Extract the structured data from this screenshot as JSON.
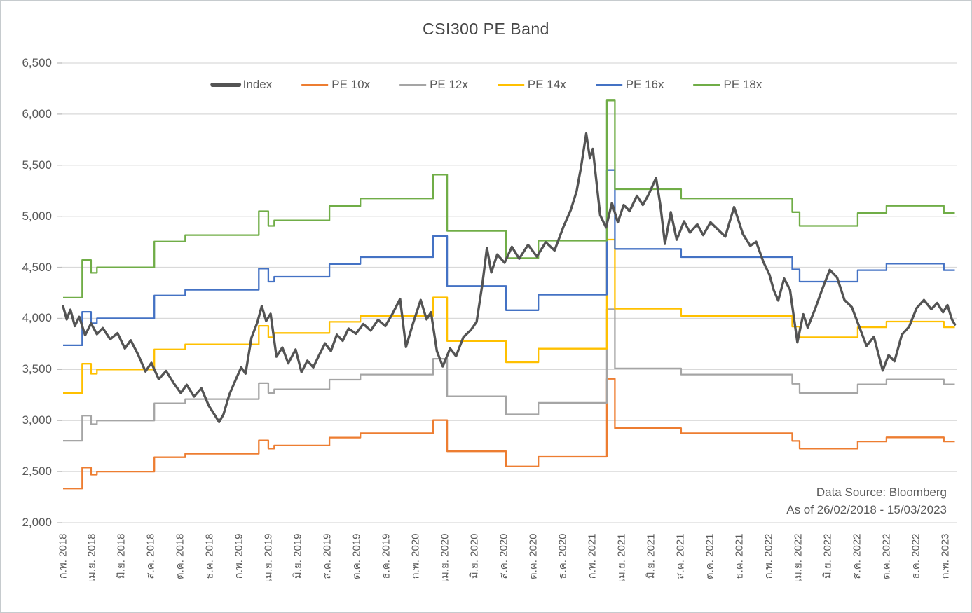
{
  "chart_data": {
    "type": "line",
    "title": "CSI300 PE Band",
    "legend": [
      {
        "name": "Index",
        "color": "#545454",
        "thick": true
      },
      {
        "name": "PE 10x",
        "color": "#ED7D31",
        "thick": false
      },
      {
        "name": "PE 12x",
        "color": "#A5A5A5",
        "thick": false
      },
      {
        "name": "PE 14x",
        "color": "#FFC000",
        "thick": false
      },
      {
        "name": "PE 16x",
        "color": "#4472C4",
        "thick": false
      },
      {
        "name": "PE 18x",
        "color": "#70AD47",
        "thick": false
      }
    ],
    "grid": "horizontal",
    "legend_position": "top-center",
    "y_axis": {
      "min": 2000,
      "max": 6500,
      "tick_step": 500,
      "tick_labels": [
        "6,500",
        "6,000",
        "5,500",
        "5,000",
        "4,500",
        "4,000",
        "3,500",
        "3,000",
        "2,500",
        "2,000"
      ],
      "tick_values": [
        6500,
        6000,
        5500,
        5000,
        4500,
        4000,
        3500,
        3000,
        2500,
        2000
      ]
    },
    "x_axis": {
      "unit": "months since 26/02/2018",
      "min": 0,
      "max": 60.6,
      "tick_interval_months": 2,
      "tick_labels": [
        "ก.พ. 2018",
        "เม.ย. 2018",
        "มิ.ย. 2018",
        "ส.ค. 2018",
        "ต.ค. 2018",
        "ธ.ค. 2018",
        "ก.พ. 2019",
        "เม.ย. 2019",
        "มิ.ย. 2019",
        "ส.ค. 2019",
        "ต.ค. 2019",
        "ธ.ค. 2019",
        "ก.พ. 2020",
        "เม.ย. 2020",
        "มิ.ย. 2020",
        "ส.ค. 2020",
        "ต.ค. 2020",
        "ธ.ค. 2020",
        "ก.พ. 2021",
        "เม.ย. 2021",
        "มิ.ย. 2021",
        "ส.ค. 2021",
        "ต.ค. 2021",
        "ธ.ค. 2021",
        "ก.พ. 2022",
        "เม.ย. 2022",
        "มิ.ย. 2022",
        "ส.ค. 2022",
        "ต.ค. 2022",
        "ธ.ค. 2022",
        "ก.พ. 2023"
      ]
    },
    "source_note": {
      "line1": "Data Source: Bloomberg",
      "line2": "As of 26/02/2018 - 15/03/2023"
    },
    "pe_bands": {
      "note": "band value = earnings_per_point E times PE multiple; each step [t,E] applies from month t onward",
      "multiples": [
        10,
        12,
        14,
        16,
        18
      ],
      "series_names": [
        "PE 10x",
        "PE 12x",
        "PE 14x",
        "PE 16x",
        "PE 18x"
      ],
      "colors": [
        "#ED7D31",
        "#A5A5A5",
        "#FFC000",
        "#4472C4",
        "#70AD47"
      ],
      "earnings_steps": [
        [
          0,
          233.5
        ],
        [
          1.3,
          254
        ],
        [
          1.9,
          247
        ],
        [
          2.3,
          250
        ],
        [
          6.2,
          264
        ],
        [
          8.3,
          267.5
        ],
        [
          13.3,
          280.5
        ],
        [
          13.95,
          272.5
        ],
        [
          14.35,
          275.5
        ],
        [
          18.1,
          283.3
        ],
        [
          20.2,
          287.5
        ],
        [
          25.15,
          300.4
        ],
        [
          26.1,
          269.8
        ],
        [
          30.1,
          255
        ],
        [
          32.3,
          264.5
        ],
        [
          36.95,
          340.8
        ],
        [
          37.5,
          292.5
        ],
        [
          42.0,
          287.5
        ],
        [
          49.55,
          280
        ],
        [
          50.05,
          272.5
        ],
        [
          54.0,
          279.5
        ],
        [
          55.95,
          283.5
        ],
        [
          59.85,
          279.5
        ]
      ]
    },
    "index_series": {
      "name": "Index",
      "color": "#545454",
      "points": [
        [
          0,
          4120
        ],
        [
          0.25,
          3990
        ],
        [
          0.5,
          4085
        ],
        [
          0.8,
          3925
        ],
        [
          1.1,
          4015
        ],
        [
          1.5,
          3835
        ],
        [
          1.9,
          3950
        ],
        [
          2.3,
          3845
        ],
        [
          2.7,
          3905
        ],
        [
          3.2,
          3795
        ],
        [
          3.7,
          3855
        ],
        [
          4.2,
          3705
        ],
        [
          4.6,
          3785
        ],
        [
          5.1,
          3645
        ],
        [
          5.6,
          3480
        ],
        [
          6.0,
          3565
        ],
        [
          6.5,
          3405
        ],
        [
          7.0,
          3485
        ],
        [
          7.5,
          3370
        ],
        [
          8.0,
          3270
        ],
        [
          8.4,
          3350
        ],
        [
          8.9,
          3235
        ],
        [
          9.4,
          3315
        ],
        [
          9.9,
          3145
        ],
        [
          10.3,
          3055
        ],
        [
          10.6,
          2985
        ],
        [
          10.9,
          3060
        ],
        [
          11.3,
          3255
        ],
        [
          11.7,
          3390
        ],
        [
          12.1,
          3520
        ],
        [
          12.4,
          3460
        ],
        [
          12.8,
          3810
        ],
        [
          13.2,
          3960
        ],
        [
          13.5,
          4120
        ],
        [
          13.8,
          3975
        ],
        [
          14.1,
          4045
        ],
        [
          14.5,
          3625
        ],
        [
          14.9,
          3715
        ],
        [
          15.3,
          3560
        ],
        [
          15.8,
          3695
        ],
        [
          16.2,
          3475
        ],
        [
          16.6,
          3585
        ],
        [
          17.0,
          3520
        ],
        [
          17.4,
          3640
        ],
        [
          17.8,
          3755
        ],
        [
          18.2,
          3680
        ],
        [
          18.6,
          3840
        ],
        [
          19.0,
          3780
        ],
        [
          19.4,
          3900
        ],
        [
          19.9,
          3850
        ],
        [
          20.4,
          3945
        ],
        [
          20.9,
          3880
        ],
        [
          21.4,
          3985
        ],
        [
          21.9,
          3925
        ],
        [
          22.4,
          4050
        ],
        [
          22.9,
          4190
        ],
        [
          23.3,
          3720
        ],
        [
          23.8,
          3960
        ],
        [
          24.3,
          4180
        ],
        [
          24.7,
          3990
        ],
        [
          25.0,
          4060
        ],
        [
          25.4,
          3680
        ],
        [
          25.8,
          3530
        ],
        [
          26.3,
          3705
        ],
        [
          26.7,
          3630
        ],
        [
          27.2,
          3815
        ],
        [
          27.7,
          3885
        ],
        [
          28.1,
          3965
        ],
        [
          28.5,
          4345
        ],
        [
          28.8,
          4690
        ],
        [
          29.1,
          4450
        ],
        [
          29.5,
          4625
        ],
        [
          30.0,
          4545
        ],
        [
          30.5,
          4700
        ],
        [
          31.0,
          4585
        ],
        [
          31.6,
          4720
        ],
        [
          32.2,
          4605
        ],
        [
          32.8,
          4745
        ],
        [
          33.4,
          4665
        ],
        [
          34.0,
          4895
        ],
        [
          34.5,
          5060
        ],
        [
          34.9,
          5245
        ],
        [
          35.2,
          5480
        ],
        [
          35.55,
          5810
        ],
        [
          35.8,
          5570
        ],
        [
          36.0,
          5660
        ],
        [
          36.5,
          5010
        ],
        [
          36.9,
          4890
        ],
        [
          37.3,
          5130
        ],
        [
          37.7,
          4940
        ],
        [
          38.1,
          5110
        ],
        [
          38.5,
          5050
        ],
        [
          39.0,
          5200
        ],
        [
          39.4,
          5110
        ],
        [
          39.8,
          5215
        ],
        [
          40.3,
          5375
        ],
        [
          40.6,
          5100
        ],
        [
          40.9,
          4730
        ],
        [
          41.3,
          5040
        ],
        [
          41.7,
          4770
        ],
        [
          42.2,
          4950
        ],
        [
          42.6,
          4840
        ],
        [
          43.1,
          4920
        ],
        [
          43.5,
          4815
        ],
        [
          44.0,
          4940
        ],
        [
          44.5,
          4870
        ],
        [
          45.0,
          4800
        ],
        [
          45.6,
          5090
        ],
        [
          46.2,
          4825
        ],
        [
          46.7,
          4710
        ],
        [
          47.1,
          4750
        ],
        [
          47.6,
          4550
        ],
        [
          48.0,
          4430
        ],
        [
          48.3,
          4275
        ],
        [
          48.6,
          4175
        ],
        [
          49.0,
          4390
        ],
        [
          49.4,
          4280
        ],
        [
          49.9,
          3765
        ],
        [
          50.3,
          4040
        ],
        [
          50.6,
          3910
        ],
        [
          51.1,
          4090
        ],
        [
          51.6,
          4290
        ],
        [
          52.1,
          4475
        ],
        [
          52.6,
          4400
        ],
        [
          53.1,
          4180
        ],
        [
          53.6,
          4110
        ],
        [
          54.1,
          3920
        ],
        [
          54.6,
          3730
        ],
        [
          55.1,
          3820
        ],
        [
          55.7,
          3490
        ],
        [
          56.1,
          3640
        ],
        [
          56.5,
          3580
        ],
        [
          57.0,
          3840
        ],
        [
          57.5,
          3920
        ],
        [
          58.0,
          4100
        ],
        [
          58.5,
          4180
        ],
        [
          59.0,
          4090
        ],
        [
          59.4,
          4150
        ],
        [
          59.8,
          4060
        ],
        [
          60.1,
          4130
        ],
        [
          60.4,
          3990
        ],
        [
          60.6,
          3940
        ]
      ]
    }
  }
}
